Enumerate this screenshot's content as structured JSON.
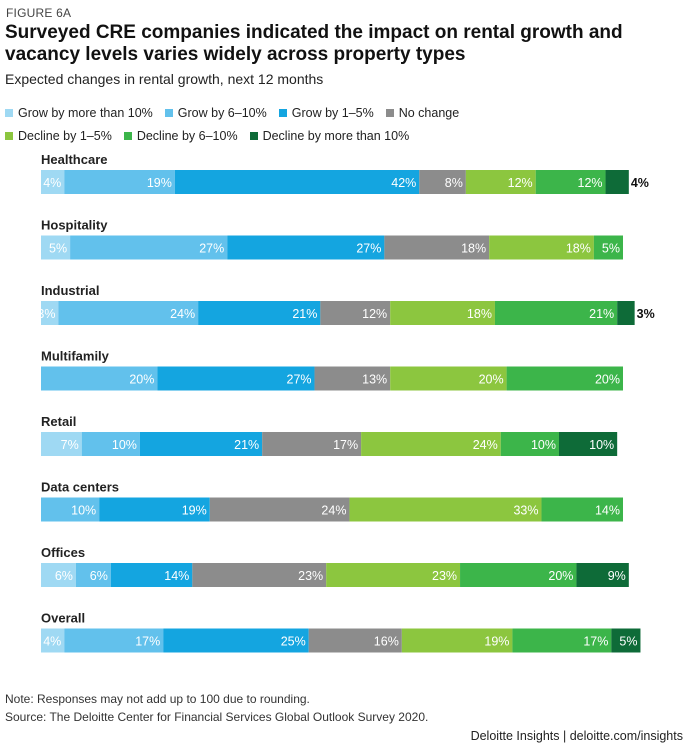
{
  "figure_label": "FIGURE 6A",
  "footnote": {
    "note": "Note: Responses may not add up to 100 due to rounding.",
    "source": "Source: The Deloitte Center for Financial Services Global Outlook Survey 2020."
  },
  "brand": {
    "name": "Deloitte Insights",
    "separator": "|",
    "url": "deloitte.com/insights"
  },
  "chart_data": {
    "type": "bar",
    "orientation": "horizontal-stacked",
    "title": "Surveyed CRE companies indicated the impact on rental growth and vacancy levels varies widely across property types",
    "subtitle": "Expected changes in rental growth, next 12 months",
    "legend_placement": "top-left",
    "grid": false,
    "unit": "%",
    "xlim": [
      0,
      100
    ],
    "categories": [
      "Healthcare",
      "Hospitality",
      "Industrial",
      "Multifamily",
      "Retail",
      "Data centers",
      "Offices",
      "Overall"
    ],
    "series": [
      {
        "name": "Grow by more than 10%",
        "color": "#9fd9f3",
        "values": [
          4,
          5,
          3,
          0,
          7,
          0,
          6,
          4
        ]
      },
      {
        "name": "Grow by 6–10%",
        "color": "#62c1ec",
        "values": [
          19,
          27,
          24,
          20,
          10,
          10,
          6,
          17
        ]
      },
      {
        "name": "Grow by 1–5%",
        "color": "#14a5e0",
        "values": [
          42,
          27,
          21,
          27,
          21,
          19,
          14,
          25
        ]
      },
      {
        "name": "No change",
        "color": "#8c8c8c",
        "values": [
          8,
          18,
          12,
          13,
          17,
          24,
          23,
          16
        ]
      },
      {
        "name": "Decline by 1–5%",
        "color": "#8cc63f",
        "values": [
          12,
          18,
          18,
          20,
          24,
          33,
          23,
          19
        ]
      },
      {
        "name": "Decline by 6–10%",
        "color": "#3cb54a",
        "values": [
          12,
          5,
          21,
          20,
          10,
          14,
          20,
          17
        ]
      },
      {
        "name": "Decline by more than 10%",
        "color": "#0e6b38",
        "values": [
          4,
          0,
          3,
          0,
          10,
          0,
          9,
          5
        ]
      }
    ],
    "outside_labels": [
      [
        0,
        6
      ],
      [
        2,
        6
      ]
    ]
  }
}
